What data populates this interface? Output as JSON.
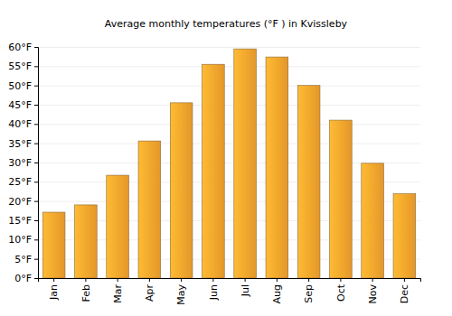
{
  "chart_data": {
    "type": "bar",
    "title": "Average monthly temperatures (°F ) in Kvissleby",
    "categories": [
      "Jan",
      "Feb",
      "Mar",
      "Apr",
      "May",
      "Jun",
      "Jul",
      "Aug",
      "Sep",
      "Oct",
      "Nov",
      "Dec"
    ],
    "values": [
      17.1,
      19,
      26.7,
      35.6,
      45.5,
      55.5,
      59.5,
      57.4,
      50,
      41,
      29.8,
      21.9
    ],
    "color": "#f9a52d",
    "ylim": [
      0,
      60
    ],
    "yticks": [
      {
        "value": 0,
        "label": "0°F"
      },
      {
        "value": 5,
        "label": "5°F"
      },
      {
        "value": 10,
        "label": "10°F"
      },
      {
        "value": 15,
        "label": "15°F"
      },
      {
        "value": 20,
        "label": "20°F"
      },
      {
        "value": 25,
        "label": "25°F"
      },
      {
        "value": 30,
        "label": "30°F"
      },
      {
        "value": 35,
        "label": "35°F"
      },
      {
        "value": 40,
        "label": "40°F"
      },
      {
        "value": 45,
        "label": "45°F"
      },
      {
        "value": 50,
        "label": "50°F"
      },
      {
        "value": 55,
        "label": "55°F"
      },
      {
        "value": 60,
        "label": "60°F"
      }
    ],
    "grid": true
  }
}
